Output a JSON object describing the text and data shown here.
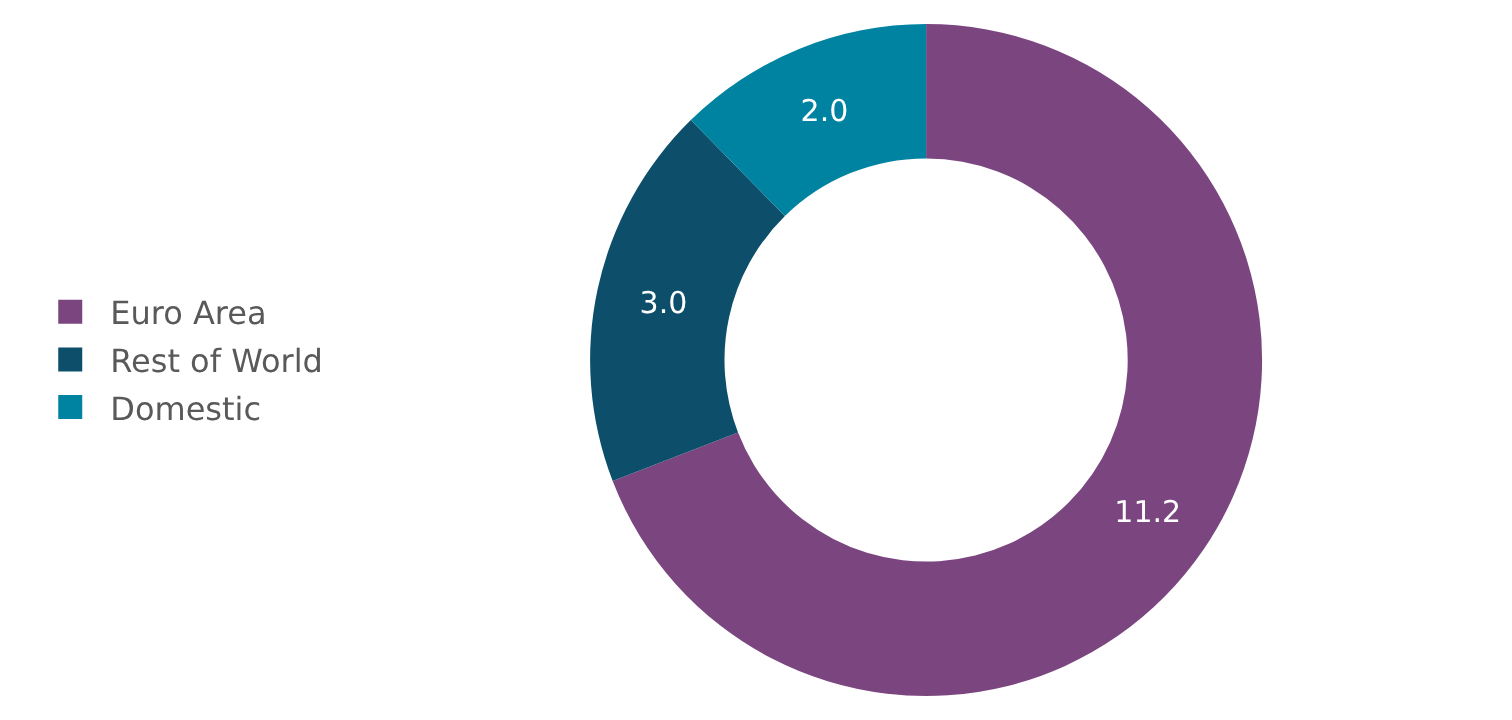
{
  "chart_data": {
    "type": "donut",
    "categories": [
      "Euro Area",
      "Rest of World",
      "Domestic"
    ],
    "values": [
      11.2,
      3.0,
      2.0
    ],
    "value_labels": [
      "11.2",
      "3.0",
      "2.0"
    ],
    "colors": [
      "#7b4580",
      "#0d4f6b",
      "#0083a0"
    ],
    "legend": "left"
  }
}
